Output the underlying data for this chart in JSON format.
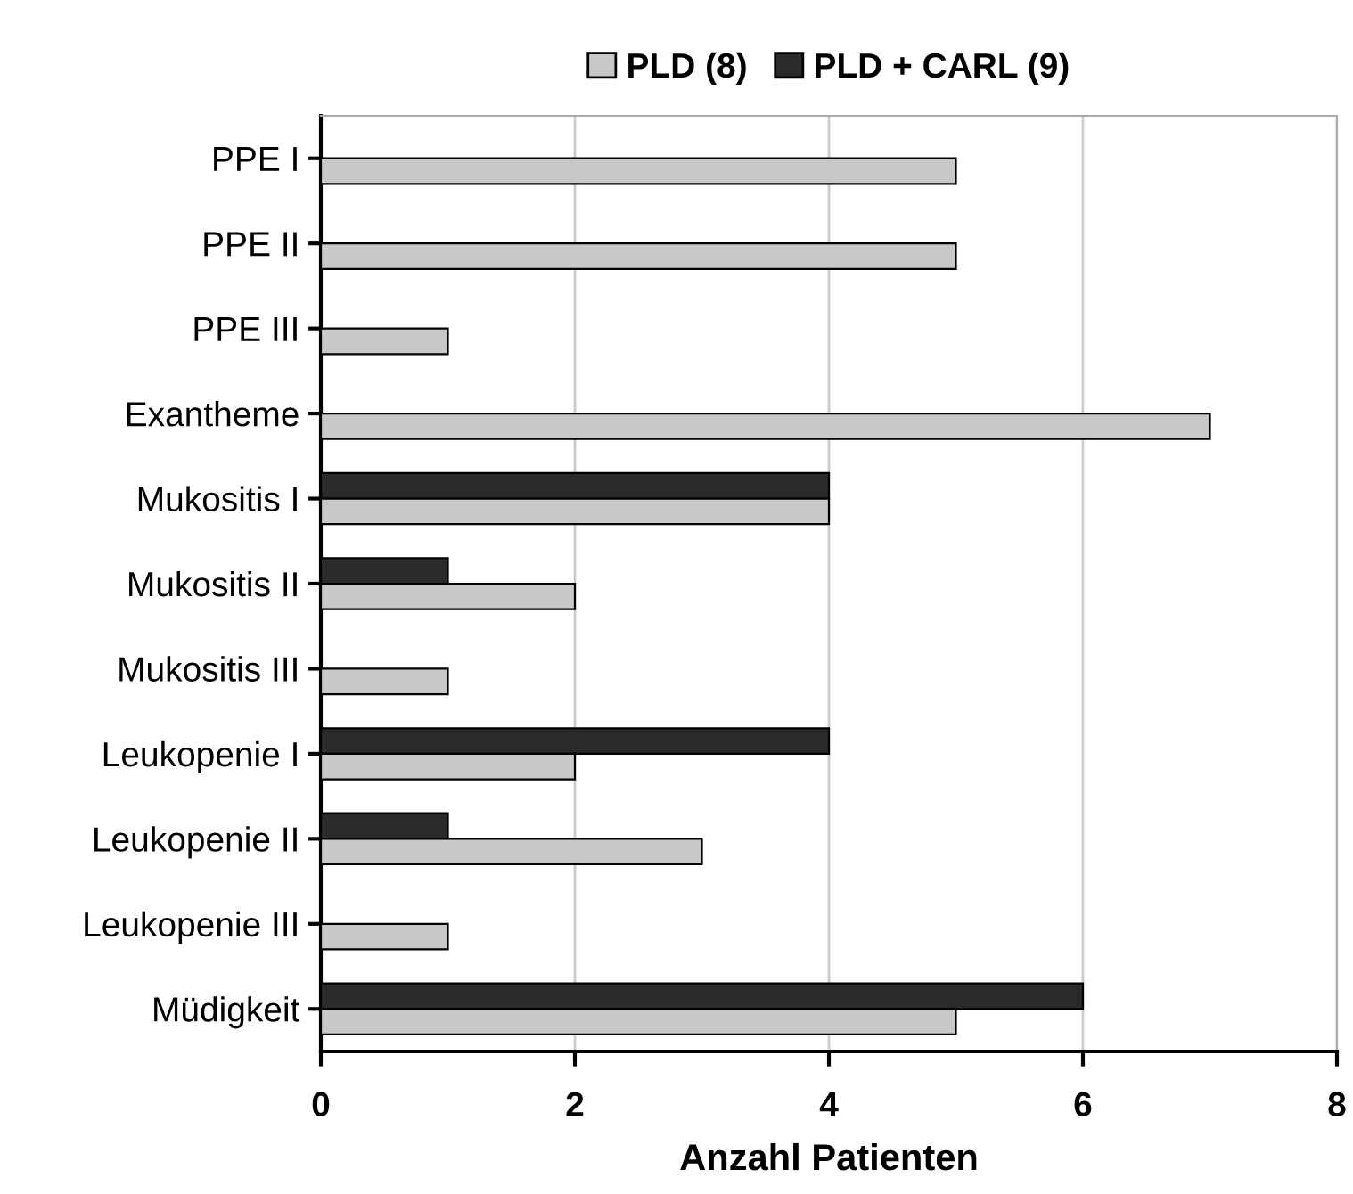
{
  "chart_data": {
    "type": "bar",
    "orientation": "horizontal",
    "xlabel": "Anzahl Patienten",
    "categories": [
      "PPE I",
      "PPE II",
      "PPE III",
      "Exantheme",
      "Mukositis I",
      "Mukositis II",
      "Mukositis III",
      "Leukopenie I",
      "Leukopenie II",
      "Leukopenie III",
      "Müdigkeit"
    ],
    "series": [
      {
        "name": "PLD + CARL (9)",
        "color": "#2a2a2a",
        "values": [
          null,
          null,
          null,
          null,
          4,
          1,
          null,
          4,
          1,
          null,
          6
        ]
      },
      {
        "name": "PLD (8)",
        "color": "#c8c8c8",
        "values": [
          5,
          5,
          1,
          7,
          4,
          2,
          1,
          2,
          3,
          1,
          5
        ]
      }
    ],
    "xlim": [
      0,
      8
    ],
    "xticks": [
      0,
      2,
      4,
      6,
      8
    ],
    "grid": "x",
    "legend": "top"
  }
}
